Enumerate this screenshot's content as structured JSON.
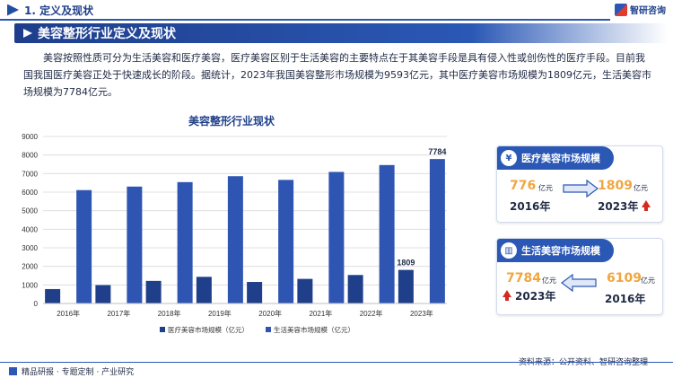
{
  "header": {
    "section": "1. 定义及现状",
    "logo": "智研咨询"
  },
  "banner": {
    "title": "美容整形行业定义及现状"
  },
  "paragraph": "美容按照性质可分为生活美容和医疗美容，医疗美容区别于生活美容的主要特点在于其美容手段是具有侵入性或创伤性的医疗手段。目前我国我国医疗美容正处于快速成长的阶段。据统计，2023年我国美容整形市场规模为9593亿元，其中医疗美容市场规模为1809亿元，生活美容市场规模为7784亿元。",
  "chart_data": {
    "type": "bar",
    "title": "美容整形行业现状",
    "categories": [
      "2016年",
      "2017年",
      "2018年",
      "2019年",
      "2020年",
      "2021年",
      "2022年",
      "2023年"
    ],
    "series": [
      {
        "name": "医疗美容市场规模（亿元）",
        "color": "#1f3f8a",
        "values": [
          776,
          990,
          1217,
          1436,
          1160,
          1325,
          1535,
          1809
        ]
      },
      {
        "name": "生活美容市场规模（亿元）",
        "color": "#2f55b3",
        "values": [
          6109,
          6300,
          6540,
          6860,
          6660,
          7090,
          7460,
          7784
        ]
      }
    ],
    "data_labels": {
      "医疗美容市场规模（亿元）": {
        "2023年": "1809"
      },
      "生活美容市场规模（亿元）": {
        "2023年": "7784"
      }
    },
    "yticks": [
      "0",
      "1000",
      "2000",
      "3000",
      "4000",
      "5000",
      "6000",
      "7000",
      "8000",
      "9000"
    ],
    "ylim": [
      0,
      9000
    ],
    "grid": true,
    "legend": "bottom"
  },
  "cards": [
    {
      "title": "医疗美容市场规模",
      "icon": "money-bag-icon",
      "from_value": "776",
      "from_unit": "亿元",
      "from_year": "2016年",
      "to_value": "1809",
      "to_unit": "亿元",
      "to_year": "2023年"
    },
    {
      "title": "生活美容市场规模",
      "icon": "bar-chart-icon",
      "from_value": "6109",
      "from_unit": "亿元",
      "from_year": "2016年",
      "to_value": "7784",
      "to_unit": "亿元",
      "to_year": "2023年"
    }
  ],
  "footer": {
    "left": "精品研报 · 专题定制 · 产业研究",
    "source": "资料来源：公开资料、智研咨询整理"
  }
}
